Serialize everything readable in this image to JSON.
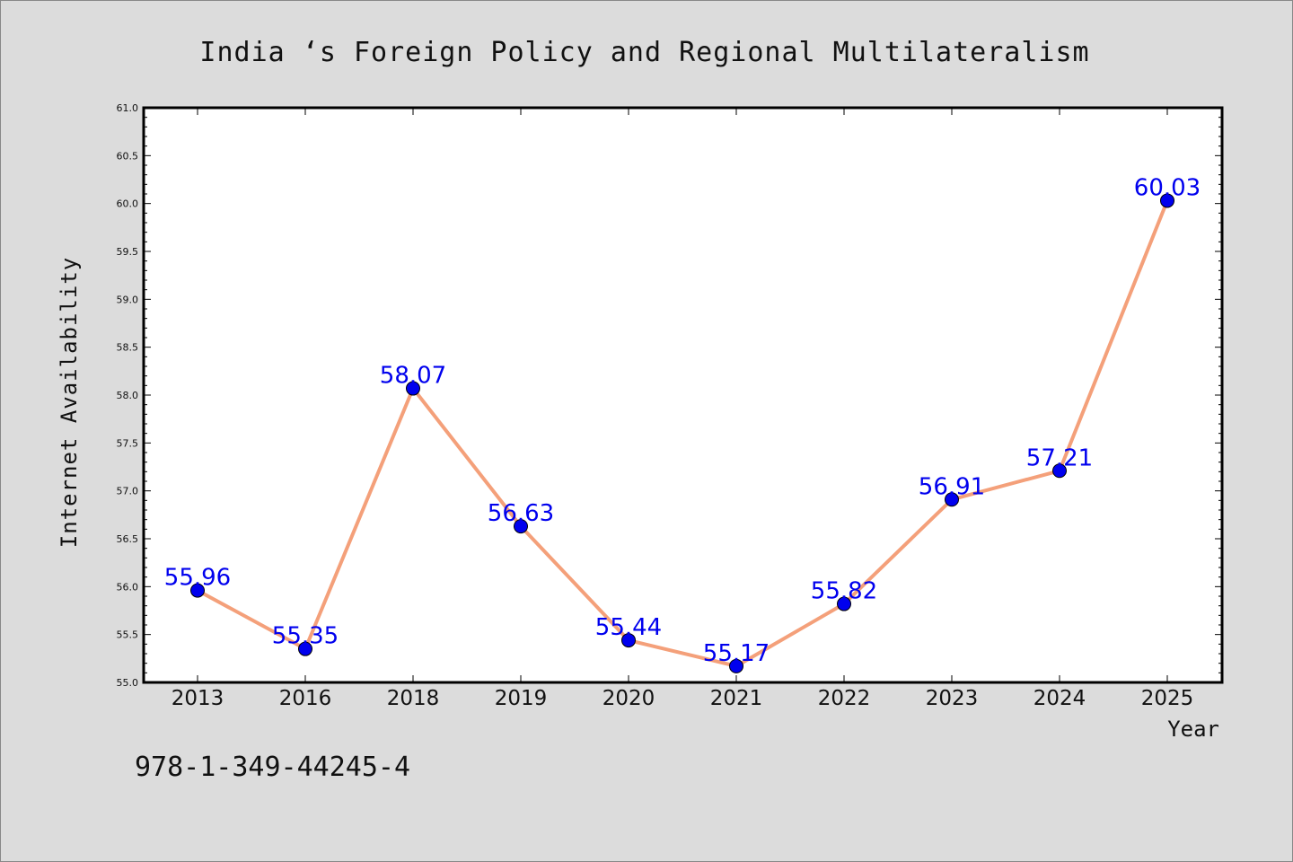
{
  "chart_data": {
    "type": "line",
    "title": "India ‘s Foreign Policy and Regional Multilateralism",
    "xlabel": "Year",
    "ylabel": "Internet Availability",
    "categories": [
      "2013",
      "2016",
      "2018",
      "2019",
      "2020",
      "2021",
      "2022",
      "2023",
      "2024",
      "2025"
    ],
    "values": [
      55.96,
      55.35,
      58.07,
      56.63,
      55.44,
      55.17,
      55.82,
      56.91,
      57.21,
      60.03
    ],
    "data_labels": [
      "55.96",
      "55.35",
      "58.07",
      "56.63",
      "55.44",
      "55.17",
      "55.82",
      "56.91",
      "57.21",
      "60.03"
    ],
    "ylim": [
      55.0,
      61.0
    ],
    "yticks": [
      "55.0",
      "55.5",
      "56.0",
      "56.5",
      "57.0",
      "57.5",
      "58.0",
      "58.5",
      "59.0",
      "59.5",
      "60.0",
      "60.5",
      "61.0"
    ],
    "grid": false,
    "line_color": "#f4a07a",
    "marker_color": "#0000ee",
    "label_color": "#0000ee"
  },
  "footer": {
    "isbn": "978-1-349-44245-4"
  }
}
